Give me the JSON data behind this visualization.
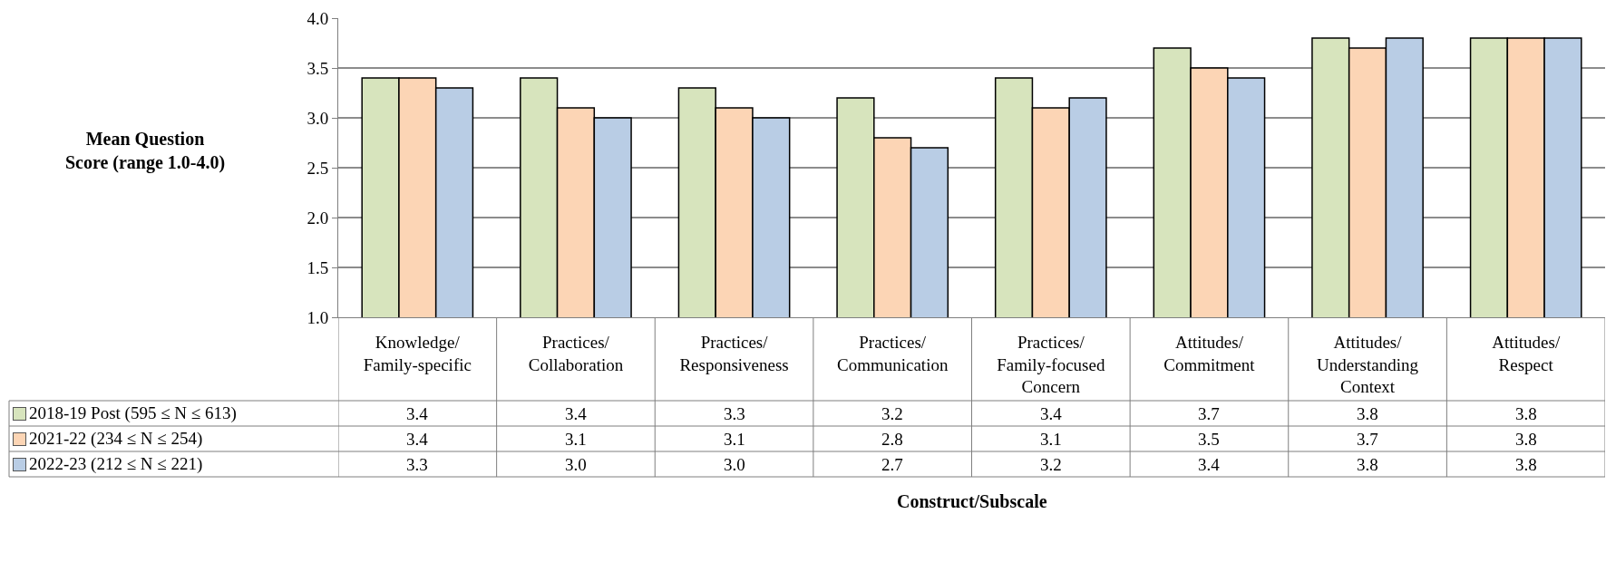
{
  "chart_data": {
    "type": "bar",
    "categories": [
      "Knowledge/ Family-specific",
      "Practices/ Collaboration",
      "Practices/ Responsiveness",
      "Practices/ Communication",
      "Practices/ Family-focused Concern",
      "Attitudes/ Commitment",
      "Attitudes/ Understanding Context",
      "Attitudes/ Respect"
    ],
    "series": [
      {
        "name": "2018-19 Post (595 ≤ N ≤ 613)",
        "color": "#d7e4bd",
        "values": [
          3.4,
          3.4,
          3.3,
          3.2,
          3.4,
          3.7,
          3.8,
          3.8
        ],
        "value_labels": [
          "3.4",
          "3.4",
          "3.3",
          "3.2",
          "3.4",
          "3.7",
          "3.8",
          "3.8"
        ]
      },
      {
        "name": "2021-22 (234 ≤ N ≤ 254)",
        "color": "#fcd5b5",
        "values": [
          3.4,
          3.1,
          3.1,
          2.8,
          3.1,
          3.5,
          3.7,
          3.8
        ],
        "value_labels": [
          "3.4",
          "3.1",
          "3.1",
          "2.8",
          "3.1",
          "3.5",
          "3.7",
          "3.8"
        ]
      },
      {
        "name": "2022-23 (212 ≤ N ≤ 221)",
        "color": "#b9cde5",
        "values": [
          3.3,
          3.0,
          3.0,
          2.7,
          3.2,
          3.4,
          3.8,
          3.8
        ],
        "value_labels": [
          "3.3",
          "3.0",
          "3.0",
          "2.7",
          "3.2",
          "3.4",
          "3.8",
          "3.8"
        ]
      }
    ],
    "ylabel": "Mean Question Score (range 1.0-4.0)",
    "annotations": [
      "Construct/Subscale"
    ],
    "ylim": [
      1.0,
      4.0
    ],
    "yticks": [
      {
        "value": 1,
        "label": "1.0"
      },
      {
        "value": 1.5,
        "label": "1.5"
      },
      {
        "value": 2,
        "label": "2.0"
      },
      {
        "value": 2.5,
        "label": "2.5"
      },
      {
        "value": 3,
        "label": "3.0"
      },
      {
        "value": 3.5,
        "label": "3.5"
      },
      {
        "value": 4,
        "label": "4.0"
      }
    ],
    "grid": "y",
    "legend": "bottom"
  }
}
